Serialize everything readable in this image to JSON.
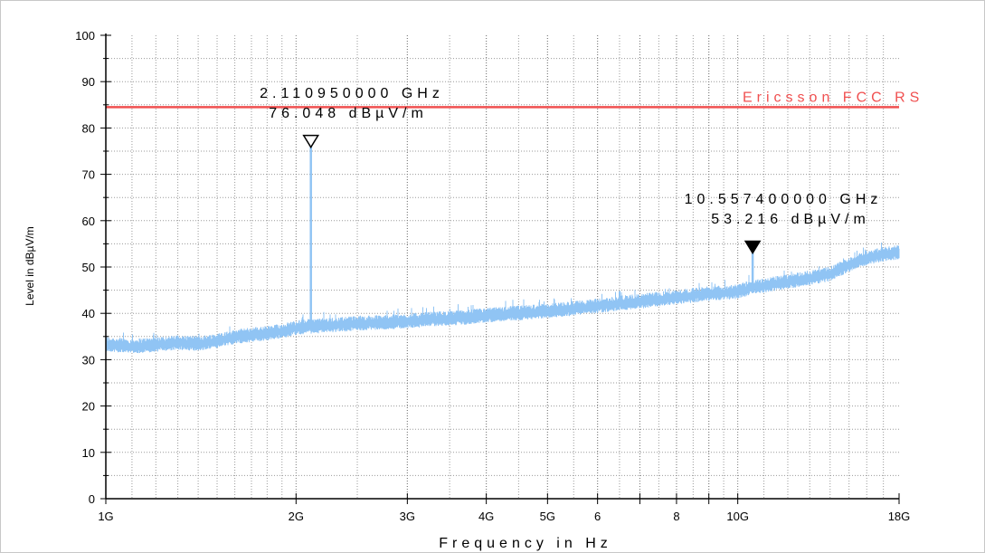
{
  "colors": {
    "trace": "#90c4f4",
    "limit": "#f05050",
    "grid": "#9a9a9a",
    "axis": "#000000"
  },
  "chart_data": {
    "type": "line",
    "xlabel": "Frequency in Hz",
    "ylabel": "Level in dBµV/m",
    "x_scale": "log",
    "xlim_hz": [
      1000000000,
      18000000000
    ],
    "ylim": [
      0,
      100
    ],
    "grid": true,
    "x_tick_labels": [
      {
        "hz": 1000000000,
        "label": "1G"
      },
      {
        "hz": 2000000000,
        "label": "2G"
      },
      {
        "hz": 3000000000,
        "label": "3G"
      },
      {
        "hz": 4000000000,
        "label": "4G"
      },
      {
        "hz": 5000000000,
        "label": "5G"
      },
      {
        "hz": 6000000000,
        "label": "6"
      },
      {
        "hz": 8000000000,
        "label": "8"
      },
      {
        "hz": 10000000000,
        "label": "10G"
      },
      {
        "hz": 18000000000,
        "label": "18G"
      }
    ],
    "x_minor_ticks_hz": [
      7000000000,
      9000000000
    ],
    "y_ticks": [
      0,
      10,
      20,
      30,
      40,
      50,
      60,
      70,
      80,
      90,
      100
    ],
    "limit_line": {
      "label": "Ericsson FCC RS",
      "value": 84.5
    },
    "series": [
      {
        "x_ghz": [
          1.0,
          1.1,
          1.2,
          1.3,
          1.4,
          1.5,
          1.6,
          1.7,
          1.8,
          1.9,
          2.0,
          2.1,
          2.3,
          2.5,
          2.7,
          3.0,
          3.3,
          3.6,
          4.0,
          4.5,
          5.0,
          5.5,
          6.0,
          6.5,
          7.0,
          7.5,
          8.0,
          8.5,
          9.0,
          9.5,
          10.0,
          10.5,
          11.0,
          12.0,
          13.0,
          14.0,
          15.0,
          16.0,
          17.0,
          18.0
        ],
        "y": [
          33.3,
          32.8,
          33.2,
          33.6,
          33.4,
          34.0,
          34.8,
          35.3,
          35.6,
          36.1,
          36.8,
          37.1,
          37.4,
          37.8,
          37.9,
          38.2,
          38.7,
          38.9,
          39.5,
          40.0,
          40.4,
          41.0,
          41.5,
          42.1,
          42.5,
          43.0,
          43.4,
          43.8,
          44.2,
          44.4,
          44.6,
          45.5,
          45.9,
          46.8,
          47.6,
          48.4,
          50.4,
          51.9,
          52.7,
          53.1
        ]
      }
    ],
    "markers": [
      {
        "freq_hz": 2110950000,
        "level": 76.048,
        "freq_label": "2.110950000 GHz",
        "level_label": "76.048 dBµV/m",
        "style": "open"
      },
      {
        "freq_hz": 10557400000,
        "level": 53.216,
        "freq_label": "10.557400000 GHz",
        "level_label": "53.216 dBµV/m",
        "style": "filled"
      }
    ]
  }
}
